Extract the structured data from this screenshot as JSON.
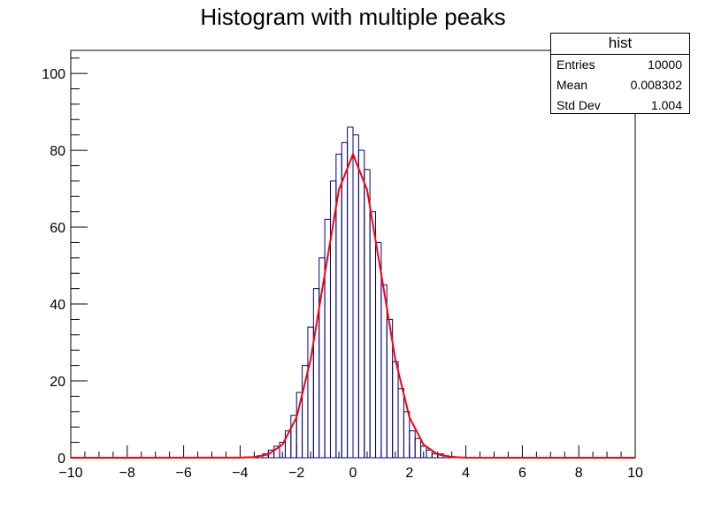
{
  "chart_data": {
    "type": "histogram",
    "title": "Histogram with multiple peaks",
    "xlim": [
      -10,
      10
    ],
    "ylim": [
      0,
      106
    ],
    "x_ticks": [
      -10,
      -8,
      -6,
      -4,
      -2,
      0,
      2,
      4,
      6,
      8,
      10
    ],
    "x_tick_labels": [
      "−10",
      "−8",
      "−6",
      "−4",
      "−2",
      "0",
      "2",
      "4",
      "6",
      "8",
      "10"
    ],
    "y_ticks": [
      0,
      20,
      40,
      60,
      80,
      100
    ],
    "y_tick_labels": [
      "0",
      "20",
      "40",
      "60",
      "80",
      "100"
    ],
    "bin_centers": [
      -3.3,
      -3.1,
      -2.9,
      -2.7,
      -2.5,
      -2.3,
      -2.1,
      -1.9,
      -1.7,
      -1.5,
      -1.3,
      -1.1,
      -0.9,
      -0.7,
      -0.5,
      -0.3,
      -0.1,
      0.1,
      0.3,
      0.5,
      0.7,
      0.9,
      1.1,
      1.3,
      1.5,
      1.7,
      1.9,
      2.1,
      2.3,
      2.5,
      2.7,
      2.9,
      3.1,
      3.3,
      3.5
    ],
    "histogram_values": [
      0.5,
      1,
      2,
      3,
      4,
      7,
      11,
      17,
      24,
      34,
      44,
      52,
      62,
      72,
      79,
      82,
      86,
      84,
      80,
      75,
      64,
      56,
      45,
      36,
      25,
      18,
      12,
      7,
      5,
      3,
      2,
      1,
      1,
      0.5,
      0.3
    ],
    "fit_function": {
      "type": "gaussian",
      "color": "#ff0000",
      "x": [
        -10,
        -4,
        -3.5,
        -3,
        -2.5,
        -2,
        -1.5,
        -1,
        -0.5,
        0,
        0.5,
        1,
        1.5,
        2,
        2.5,
        3,
        3.5,
        4,
        10
      ],
      "y": [
        0,
        0.03,
        0.17,
        0.88,
        3.4,
        10.5,
        25.6,
        47.8,
        69.7,
        79,
        69.7,
        47.8,
        25.6,
        10.5,
        3.4,
        0.88,
        0.17,
        0.03,
        0
      ]
    },
    "histogram_color": "#000080"
  },
  "stats": {
    "title": "hist",
    "rows": [
      {
        "label": "Entries",
        "value": "10000"
      },
      {
        "label": "Mean",
        "value": "0.008302"
      },
      {
        "label": "Std Dev",
        "value": "1.004"
      }
    ]
  }
}
